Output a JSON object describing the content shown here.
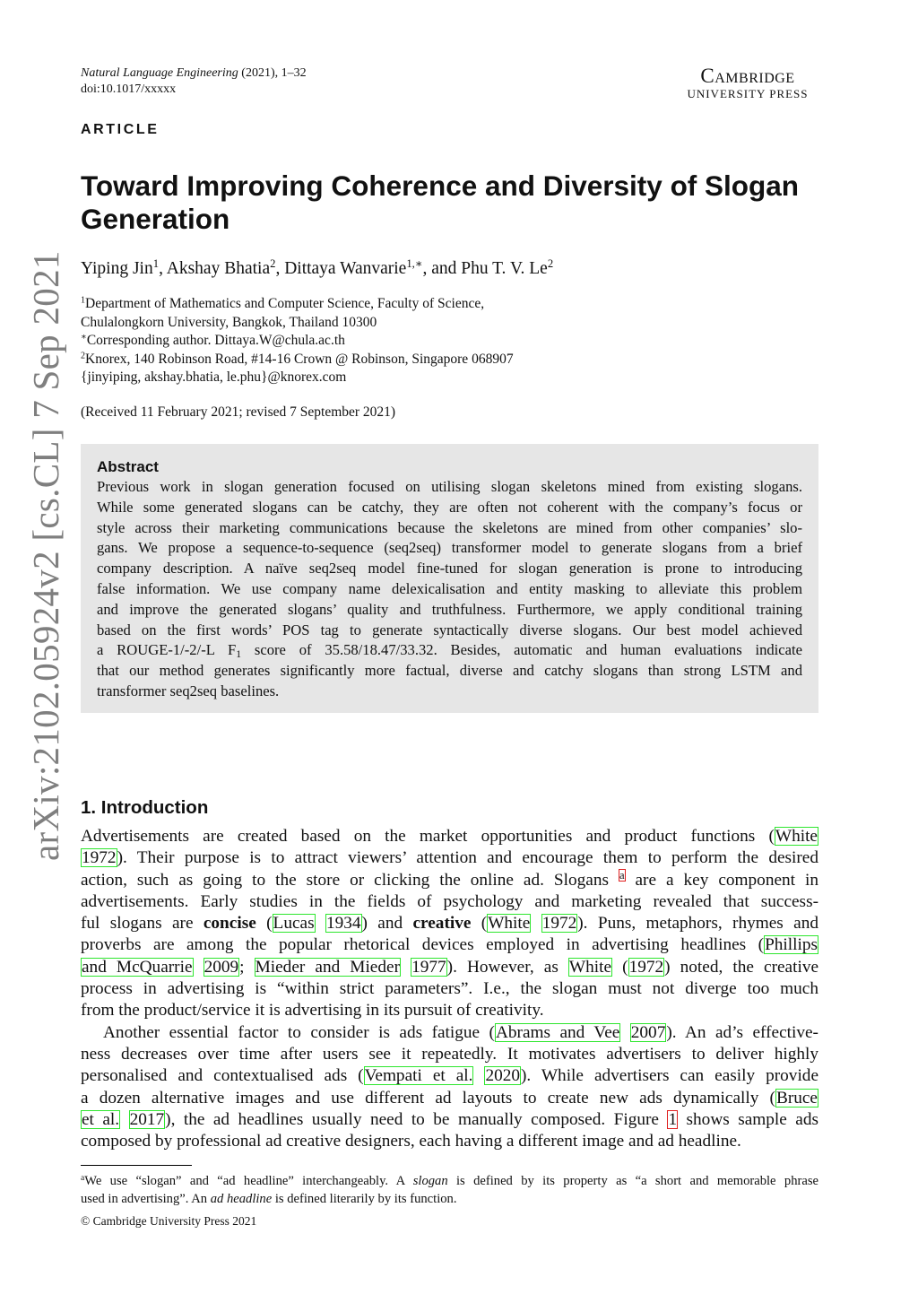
{
  "header": {
    "journal_name": "Natural Language Engineering",
    "journal_info": " (2021), 1–32",
    "doi": "doi:10.1017/xxxxx",
    "publisher_line1": "Cambridge",
    "publisher_line2": "UNIVERSITY PRESS"
  },
  "article_label": "ARTICLE",
  "title": "Toward Improving Coherence and Diversity of Slogan Generation",
  "authors": [
    {
      "name": "Yiping Jin",
      "sup": "1",
      "sep": ", "
    },
    {
      "name": "Akshay Bhatia",
      "sup": "2",
      "sep": ", "
    },
    {
      "name": "Dittaya Wanvarie",
      "sup": "1,∗",
      "sep": ",  and "
    },
    {
      "name": "Phu T. V. Le",
      "sup": "2",
      "sep": ""
    }
  ],
  "affiliations": [
    {
      "sup": "1",
      "text": "Department of Mathematics and Computer Science, Faculty of Science,"
    },
    {
      "sup": "",
      "text": "Chulalongkorn University, Bangkok, Thailand 10300"
    },
    {
      "sup": "∗",
      "text": "Corresponding author. Dittaya.W@chula.ac.th"
    },
    {
      "sup": "2",
      "text": "Knorex, 140 Robinson Road, #14-16 Crown @ Robinson, Singapore 068907"
    },
    {
      "sup": "",
      "text": "{jinyiping, akshay.bhatia, le.phu}@knorex.com"
    }
  ],
  "received": "(Received 11 February 2021; revised 7 September 2021)",
  "abstract": {
    "heading": "Abstract",
    "lines": [
      [
        {
          "t": "Previous work in slogan generation focused on utilising slogan skeletons mined from existing slogans."
        }
      ],
      [
        {
          "t": "While some generated slogans can be catchy, they are often not coherent with the company’s focus or"
        }
      ],
      [
        {
          "t": "style across their marketing communications because the skeletons are mined from other companies’ slo-"
        }
      ],
      [
        {
          "t": "gans. We propose a sequence-to-sequence (seq2seq) transformer model to generate slogans from a brief"
        }
      ],
      [
        {
          "t": "company description. A naïve seq2seq model fine-tuned for slogan generation is prone to introducing"
        }
      ],
      [
        {
          "t": "false information. We use company name delexicalisation and entity masking to alleviate this problem"
        }
      ],
      [
        {
          "t": "and improve the generated slogans’ quality and truthfulness. Furthermore, we apply conditional training"
        }
      ],
      [
        {
          "t": "based on the first words’ POS tag to generate syntactically diverse slogans. Our best model achieved"
        }
      ],
      [
        {
          "t": "a ROUGE-1/-2/-L F"
        },
        {
          "t": "1",
          "k": "sub"
        },
        {
          "t": " score of 35.58/18.47/33.32. Besides, automatic and human evaluations indicate"
        }
      ],
      [
        {
          "t": "that our method generates significantly more factual, diverse and catchy slogans than strong LSTM and"
        }
      ],
      [
        {
          "t": "transformer seq2seq baselines."
        }
      ]
    ]
  },
  "introduction": {
    "heading": "1.  Introduction",
    "lines": [
      [
        {
          "t": "Advertisements are created based on the market opportunities and product functions ("
        },
        {
          "t": "White",
          "k": "link"
        }
      ],
      [
        {
          "t": "1972",
          "k": "link"
        },
        {
          "t": "). Their purpose is to attract viewers’ attention and encourage them to perform the desired"
        }
      ],
      [
        {
          "t": "action, such as going to the store or clicking the online ad. Slogans "
        },
        {
          "t": "a",
          "k": "fn"
        },
        {
          "t": " are a key component in"
        }
      ],
      [
        {
          "t": "advertisements. Early studies in the fields of psychology and marketing revealed that success-"
        }
      ],
      [
        {
          "t": "ful slogans are "
        },
        {
          "t": "concise",
          "k": "bold"
        },
        {
          "t": " ("
        },
        {
          "t": "Lucas",
          "k": "link"
        },
        {
          "t": " "
        },
        {
          "t": "1934",
          "k": "link"
        },
        {
          "t": ") and "
        },
        {
          "t": "creative",
          "k": "bold"
        },
        {
          "t": " ("
        },
        {
          "t": "White",
          "k": "link"
        },
        {
          "t": " "
        },
        {
          "t": "1972",
          "k": "link"
        },
        {
          "t": "). Puns, metaphors, rhymes and"
        }
      ],
      [
        {
          "t": "proverbs are among the popular rhetorical devices employed in advertising headlines ("
        },
        {
          "t": "Phillips",
          "k": "link"
        }
      ],
      [
        {
          "t": "and McQuarrie",
          "k": "link"
        },
        {
          "t": " "
        },
        {
          "t": "2009",
          "k": "link"
        },
        {
          "t": "; "
        },
        {
          "t": "Mieder and Mieder",
          "k": "link"
        },
        {
          "t": " "
        },
        {
          "t": "1977",
          "k": "link"
        },
        {
          "t": "). However, as "
        },
        {
          "t": "White",
          "k": "link"
        },
        {
          "t": " ("
        },
        {
          "t": "1972",
          "k": "link"
        },
        {
          "t": ") noted, the creative"
        }
      ],
      [
        {
          "t": "process in advertising is “within strict parameters”. I.e., the slogan must not diverge too much"
        }
      ],
      [
        {
          "t": "from the product/service it is advertising in its pursuit of creativity."
        }
      ],
      [
        {
          "t": "Another essential factor to consider is ads fatigue ("
        },
        {
          "t": "Abrams and Vee",
          "k": "link"
        },
        {
          "t": " "
        },
        {
          "t": "2007",
          "k": "link"
        },
        {
          "t": "). An ad’s effective-"
        }
      ],
      [
        {
          "t": "ness decreases over time after users see it repeatedly. It motivates advertisers to deliver highly"
        }
      ],
      [
        {
          "t": "personalised and contextualised ads ("
        },
        {
          "t": "Vempati et al.",
          "k": "link"
        },
        {
          "t": " "
        },
        {
          "t": "2020",
          "k": "link"
        },
        {
          "t": "). While advertisers can easily provide"
        }
      ],
      [
        {
          "t": "a dozen alternative images and use different ad layouts to create new ads dynamically ("
        },
        {
          "t": "Bruce",
          "k": "link"
        }
      ],
      [
        {
          "t": "et al.",
          "k": "link"
        },
        {
          "t": " "
        },
        {
          "t": "2017",
          "k": "link"
        },
        {
          "t": "), the ad headlines usually need to be manually composed. Figure "
        },
        {
          "t": "1",
          "k": "fig"
        },
        {
          "t": " shows sample ads"
        }
      ],
      [
        {
          "t": "composed by professional ad creative designers, each having a different image and ad headline."
        }
      ]
    ]
  },
  "footnote": {
    "lines": [
      [
        {
          "t": "a",
          "k": "sup"
        },
        {
          "t": "We use “slogan” and “ad headline” interchangeably. A "
        },
        {
          "t": "slogan",
          "k": "italic"
        },
        {
          "t": " is defined by its property as “a short and memorable phrase"
        }
      ],
      [
        {
          "t": "used in advertising”. An "
        },
        {
          "t": "ad headline",
          "k": "italic"
        },
        {
          "t": " is defined literarily by its function."
        }
      ]
    ]
  },
  "copyright": "© Cambridge University Press 2021",
  "arxiv_stamp": "arXiv:2102.05924v2  [cs.CL]  7 Sep 2021",
  "colors": {
    "abstract_bg": "#e6e6e6",
    "citation_border": "#2ee62e",
    "figure_ref_border": "#e02020"
  }
}
